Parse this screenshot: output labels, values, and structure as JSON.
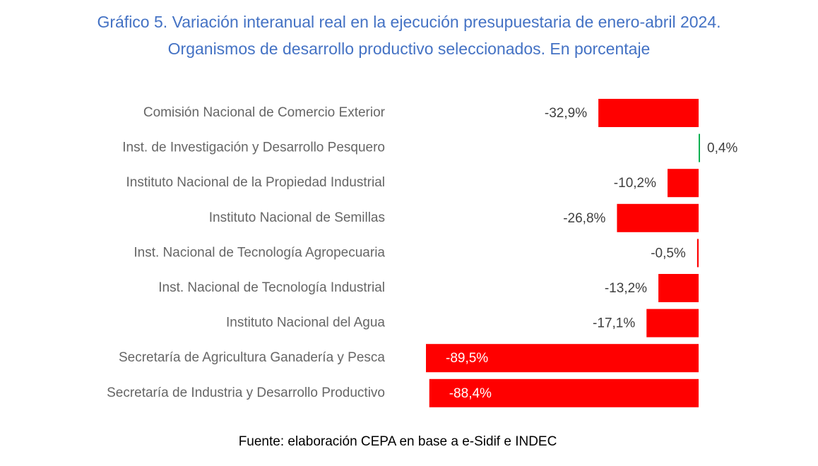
{
  "chart_data": {
    "type": "bar",
    "orientation": "horizontal",
    "title": "Gráfico 5. Variación interanual real en la ejecución presupuestaria de enero-abril 2024.",
    "subtitle": "Organismos de desarrollo productivo seleccionados. En porcentaje",
    "categories": [
      "Comisión Nacional de Comercio Exterior",
      "Inst. de Investigación y Desarrollo Pesquero",
      "Instituto Nacional de la Propiedad Industrial",
      "Instituto Nacional de Semillas",
      "Inst. Nacional de Tecnología Agropecuaria",
      "Inst. Nacional de Tecnología Industrial",
      "Instituto Nacional del Agua",
      "Secretaría de Agricultura Ganadería y Pesca",
      "Secretaría de Industria y Desarrollo Productivo"
    ],
    "values": [
      -32.9,
      0.4,
      -10.2,
      -26.8,
      -0.5,
      -13.2,
      -17.1,
      -89.5,
      -88.4
    ],
    "data_labels": [
      "-32,9%",
      "0,4%",
      "-10,2%",
      "-26,8%",
      "-0,5%",
      "-13,2%",
      "-17,1%",
      "-89,5%",
      "-88,4%"
    ],
    "unit": "%",
    "xlim": [
      -89.5,
      0.4
    ],
    "grid": false,
    "legend": "none",
    "colors": {
      "negative": "#FF0000",
      "positive": "#00B050",
      "title": "#4472C4",
      "category_label": "#666666",
      "value_label_outside": "#404040",
      "value_label_inside": "#FFFFFF"
    }
  },
  "source": "Fuente: elaboración CEPA en base a e-Sidif e INDEC"
}
